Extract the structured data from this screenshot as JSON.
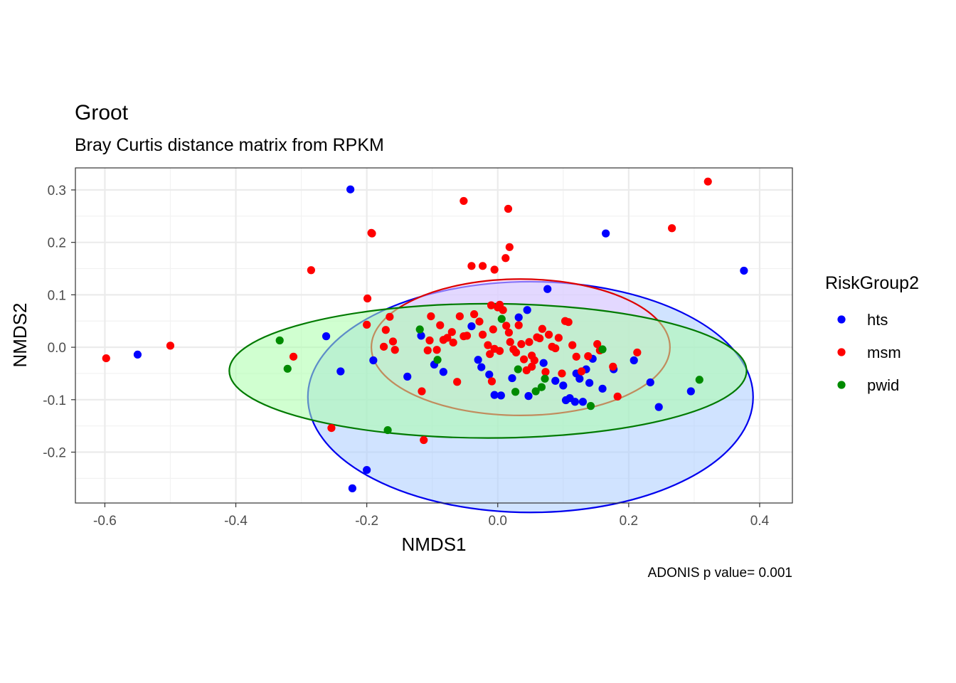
{
  "chart_data": {
    "type": "scatter",
    "title": "Groot",
    "subtitle": "Bray Curtis distance matrix from RPKM",
    "xlabel": "NMDS1",
    "ylabel": "NMDS2",
    "caption": "ADONIS p value= 0.001",
    "xlim": [
      -0.645,
      0.45
    ],
    "ylim": [
      -0.297,
      0.342
    ],
    "xticks": [
      -0.6,
      -0.4,
      -0.2,
      0.0,
      0.2,
      0.4
    ],
    "xtick_labels": [
      "-0.6",
      "-0.4",
      "-0.2",
      "0.0",
      "0.2",
      "0.4"
    ],
    "yticks": [
      -0.2,
      -0.1,
      0.0,
      0.1,
      0.2,
      0.3
    ],
    "ytick_labels": [
      "-0.2",
      "-0.1",
      "0.0",
      "0.1",
      "0.2",
      "0.3"
    ],
    "grid": true,
    "legend": {
      "title": "RiskGroup2",
      "position": "right"
    },
    "series": [
      {
        "name": "hts",
        "color": "#0000ff",
        "ellipse": {
          "cx": 0.05,
          "cy": -0.095,
          "rx": 0.34,
          "ry": 0.22,
          "stroke": "#0000ee",
          "fill": "#aaccff"
        },
        "x": [
          -0.225,
          -0.55,
          -0.262,
          -0.24,
          -0.19,
          -0.138,
          -0.117,
          -0.097,
          -0.083,
          -0.04,
          -0.03,
          -0.025,
          -0.013,
          -0.005,
          0.005,
          0.022,
          0.032,
          0.047,
          0.045,
          0.076,
          0.07,
          0.088,
          0.1,
          0.104,
          0.11,
          0.118,
          0.12,
          0.125,
          0.13,
          0.135,
          0.14,
          0.145,
          0.16,
          0.165,
          0.177,
          0.208,
          0.233,
          0.246,
          0.295,
          0.376,
          -0.2,
          -0.222
        ],
        "y": [
          0.301,
          -0.014,
          0.021,
          -0.046,
          -0.025,
          -0.056,
          0.022,
          -0.033,
          -0.047,
          0.04,
          -0.024,
          -0.038,
          -0.052,
          -0.091,
          -0.092,
          -0.059,
          0.057,
          -0.093,
          0.071,
          0.111,
          -0.03,
          -0.064,
          -0.073,
          -0.101,
          -0.097,
          -0.104,
          -0.05,
          -0.06,
          -0.104,
          -0.042,
          -0.068,
          -0.022,
          -0.079,
          0.217,
          -0.042,
          -0.025,
          -0.067,
          -0.114,
          -0.084,
          0.146,
          -0.234,
          -0.269
        ]
      },
      {
        "name": "msm",
        "color": "#ff0000",
        "ellipse": {
          "cx": 0.035,
          "cy": 0.0,
          "rx": 0.228,
          "ry": 0.13,
          "stroke": "#dd0000",
          "fill": "#f3d0ff"
        },
        "x": [
          -0.598,
          -0.5,
          -0.312,
          -0.285,
          -0.254,
          -0.199,
          -0.2,
          -0.192,
          -0.171,
          -0.174,
          -0.165,
          -0.16,
          -0.157,
          -0.116,
          -0.107,
          -0.104,
          -0.102,
          -0.093,
          -0.088,
          -0.083,
          -0.077,
          -0.07,
          -0.068,
          -0.062,
          -0.058,
          -0.052,
          -0.047,
          -0.04,
          -0.036,
          -0.028,
          -0.023,
          -0.015,
          -0.012,
          -0.01,
          -0.007,
          -0.005,
          0.0,
          0.003,
          0.008,
          0.013,
          0.017,
          0.019,
          0.024,
          0.028,
          0.032,
          0.036,
          0.04,
          0.044,
          0.048,
          0.052,
          0.056,
          0.06,
          0.064,
          0.068,
          0.073,
          0.078,
          0.083,
          0.088,
          0.093,
          0.098,
          0.103,
          0.108,
          0.114,
          0.12,
          0.128,
          0.138,
          0.152,
          0.156,
          0.176,
          0.183,
          0.213,
          0.266,
          0.321,
          -0.052,
          0.016,
          -0.193,
          -0.005,
          -0.023,
          0.012,
          0.018,
          0.003,
          0.052,
          -0.009,
          -0.113
        ],
        "y": [
          -0.021,
          0.003,
          -0.018,
          0.147,
          -0.154,
          0.093,
          0.043,
          0.217,
          0.033,
          0.001,
          0.058,
          0.011,
          -0.005,
          -0.084,
          -0.006,
          0.013,
          0.059,
          -0.005,
          0.042,
          0.014,
          0.018,
          0.029,
          0.009,
          -0.066,
          0.059,
          0.021,
          0.022,
          0.155,
          0.063,
          0.049,
          0.024,
          0.004,
          -0.013,
          0.08,
          0.034,
          -0.003,
          0.076,
          -0.007,
          0.071,
          0.041,
          0.028,
          0.01,
          -0.004,
          -0.01,
          0.042,
          0.006,
          -0.023,
          -0.044,
          0.01,
          -0.016,
          -0.025,
          0.019,
          0.017,
          0.035,
          -0.047,
          0.024,
          0.001,
          -0.002,
          0.018,
          -0.05,
          0.05,
          0.048,
          0.004,
          -0.018,
          -0.046,
          -0.017,
          0.006,
          -0.006,
          -0.037,
          -0.094,
          -0.01,
          0.227,
          0.316,
          0.279,
          0.264,
          0.218,
          0.148,
          0.155,
          0.17,
          0.191,
          0.081,
          -0.037,
          -0.065,
          -0.177
        ]
      },
      {
        "name": "pwid",
        "color": "#008b00",
        "ellipse": {
          "cx": -0.015,
          "cy": -0.045,
          "rx": 0.395,
          "ry": 0.128,
          "stroke": "#007a00",
          "fill": "#aaffaa"
        },
        "x": [
          -0.333,
          -0.321,
          -0.168,
          -0.119,
          -0.092,
          0.006,
          0.027,
          0.031,
          0.058,
          0.067,
          0.072,
          0.142,
          0.16,
          0.308
        ],
        "y": [
          0.013,
          -0.041,
          -0.158,
          0.034,
          -0.024,
          0.054,
          -0.085,
          -0.042,
          -0.084,
          -0.076,
          -0.06,
          -0.112,
          -0.004,
          -0.062
        ]
      }
    ]
  }
}
